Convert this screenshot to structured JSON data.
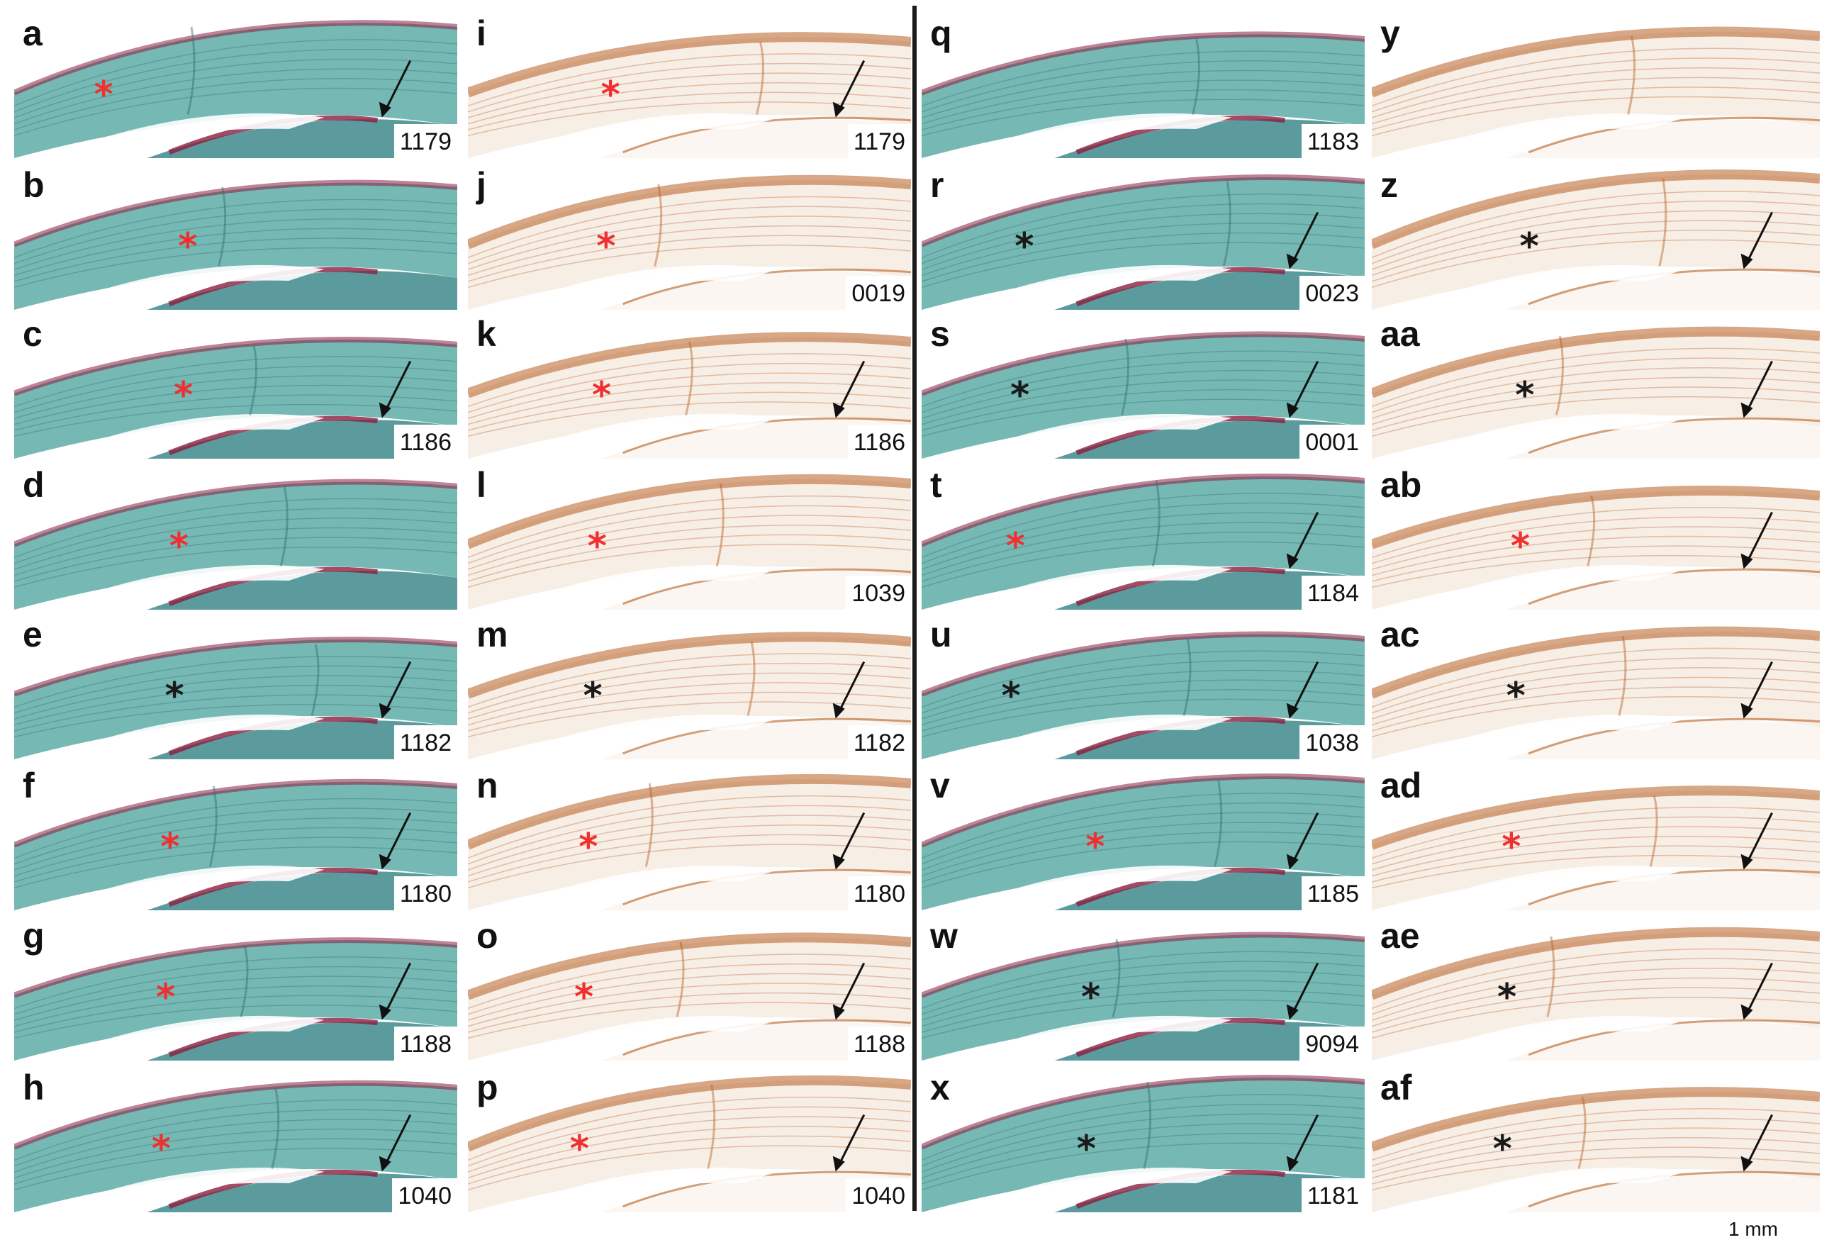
{
  "figure": {
    "scale_bar_label": "1 mm",
    "colors": {
      "safranin_background": "#6fb5b0",
      "safranin_dark": "#2f6e74",
      "safranin_red": "#8b1e3f",
      "ihc_background": "#f7eee6",
      "ihc_brown": "#b65f22",
      "marker_red": "#f03030",
      "marker_black": "#1a1a1a"
    },
    "columns": [
      {
        "stain": "safranin",
        "panels": [
          {
            "letter": "a",
            "sample": "1179",
            "marker_color": "red",
            "arrow": true
          },
          {
            "letter": "b",
            "sample": "",
            "marker_color": "red",
            "arrow": false
          },
          {
            "letter": "c",
            "sample": "1186",
            "marker_color": "red",
            "arrow": true
          },
          {
            "letter": "d",
            "sample": "",
            "marker_color": "red",
            "arrow": false
          },
          {
            "letter": "e",
            "sample": "1182",
            "marker_color": "black",
            "arrow": true
          },
          {
            "letter": "f",
            "sample": "1180",
            "marker_color": "red",
            "arrow": true
          },
          {
            "letter": "g",
            "sample": "1188",
            "marker_color": "red",
            "arrow": true
          },
          {
            "letter": "h",
            "sample": "1040",
            "marker_color": "red",
            "arrow": true
          }
        ]
      },
      {
        "stain": "ihc",
        "panels": [
          {
            "letter": "i",
            "sample": "1179",
            "marker_color": "red",
            "arrow": true
          },
          {
            "letter": "j",
            "sample": "0019",
            "marker_color": "red",
            "arrow": false
          },
          {
            "letter": "k",
            "sample": "1186",
            "marker_color": "red",
            "arrow": true
          },
          {
            "letter": "l",
            "sample": "1039",
            "marker_color": "red",
            "arrow": false
          },
          {
            "letter": "m",
            "sample": "1182",
            "marker_color": "black",
            "arrow": true
          },
          {
            "letter": "n",
            "sample": "1180",
            "marker_color": "red",
            "arrow": true
          },
          {
            "letter": "o",
            "sample": "1188",
            "marker_color": "red",
            "arrow": true
          },
          {
            "letter": "p",
            "sample": "1040",
            "marker_color": "red",
            "arrow": true
          }
        ]
      },
      {
        "stain": "safranin",
        "panels": [
          {
            "letter": "q",
            "sample": "1183",
            "marker_color": "none",
            "arrow": false
          },
          {
            "letter": "r",
            "sample": "0023",
            "marker_color": "black",
            "arrow": true
          },
          {
            "letter": "s",
            "sample": "0001",
            "marker_color": "black",
            "arrow": true
          },
          {
            "letter": "t",
            "sample": "1184",
            "marker_color": "red",
            "arrow": true
          },
          {
            "letter": "u",
            "sample": "1038",
            "marker_color": "black",
            "arrow": true
          },
          {
            "letter": "v",
            "sample": "1185",
            "marker_color": "red",
            "arrow": true
          },
          {
            "letter": "w",
            "sample": "9094",
            "marker_color": "black",
            "arrow": true
          },
          {
            "letter": "x",
            "sample": "1181",
            "marker_color": "black",
            "arrow": true
          }
        ]
      },
      {
        "stain": "ihc",
        "panels": [
          {
            "letter": "y",
            "sample": "",
            "marker_color": "none",
            "arrow": false
          },
          {
            "letter": "z",
            "sample": "",
            "marker_color": "black",
            "arrow": true
          },
          {
            "letter": "aa",
            "sample": "",
            "marker_color": "black",
            "arrow": true
          },
          {
            "letter": "ab",
            "sample": "",
            "marker_color": "red",
            "arrow": true
          },
          {
            "letter": "ac",
            "sample": "",
            "marker_color": "black",
            "arrow": true
          },
          {
            "letter": "ad",
            "sample": "",
            "marker_color": "red",
            "arrow": true
          },
          {
            "letter": "ae",
            "sample": "",
            "marker_color": "black",
            "arrow": true
          },
          {
            "letter": "af",
            "sample": "",
            "marker_color": "black",
            "arrow": true
          }
        ]
      }
    ]
  }
}
